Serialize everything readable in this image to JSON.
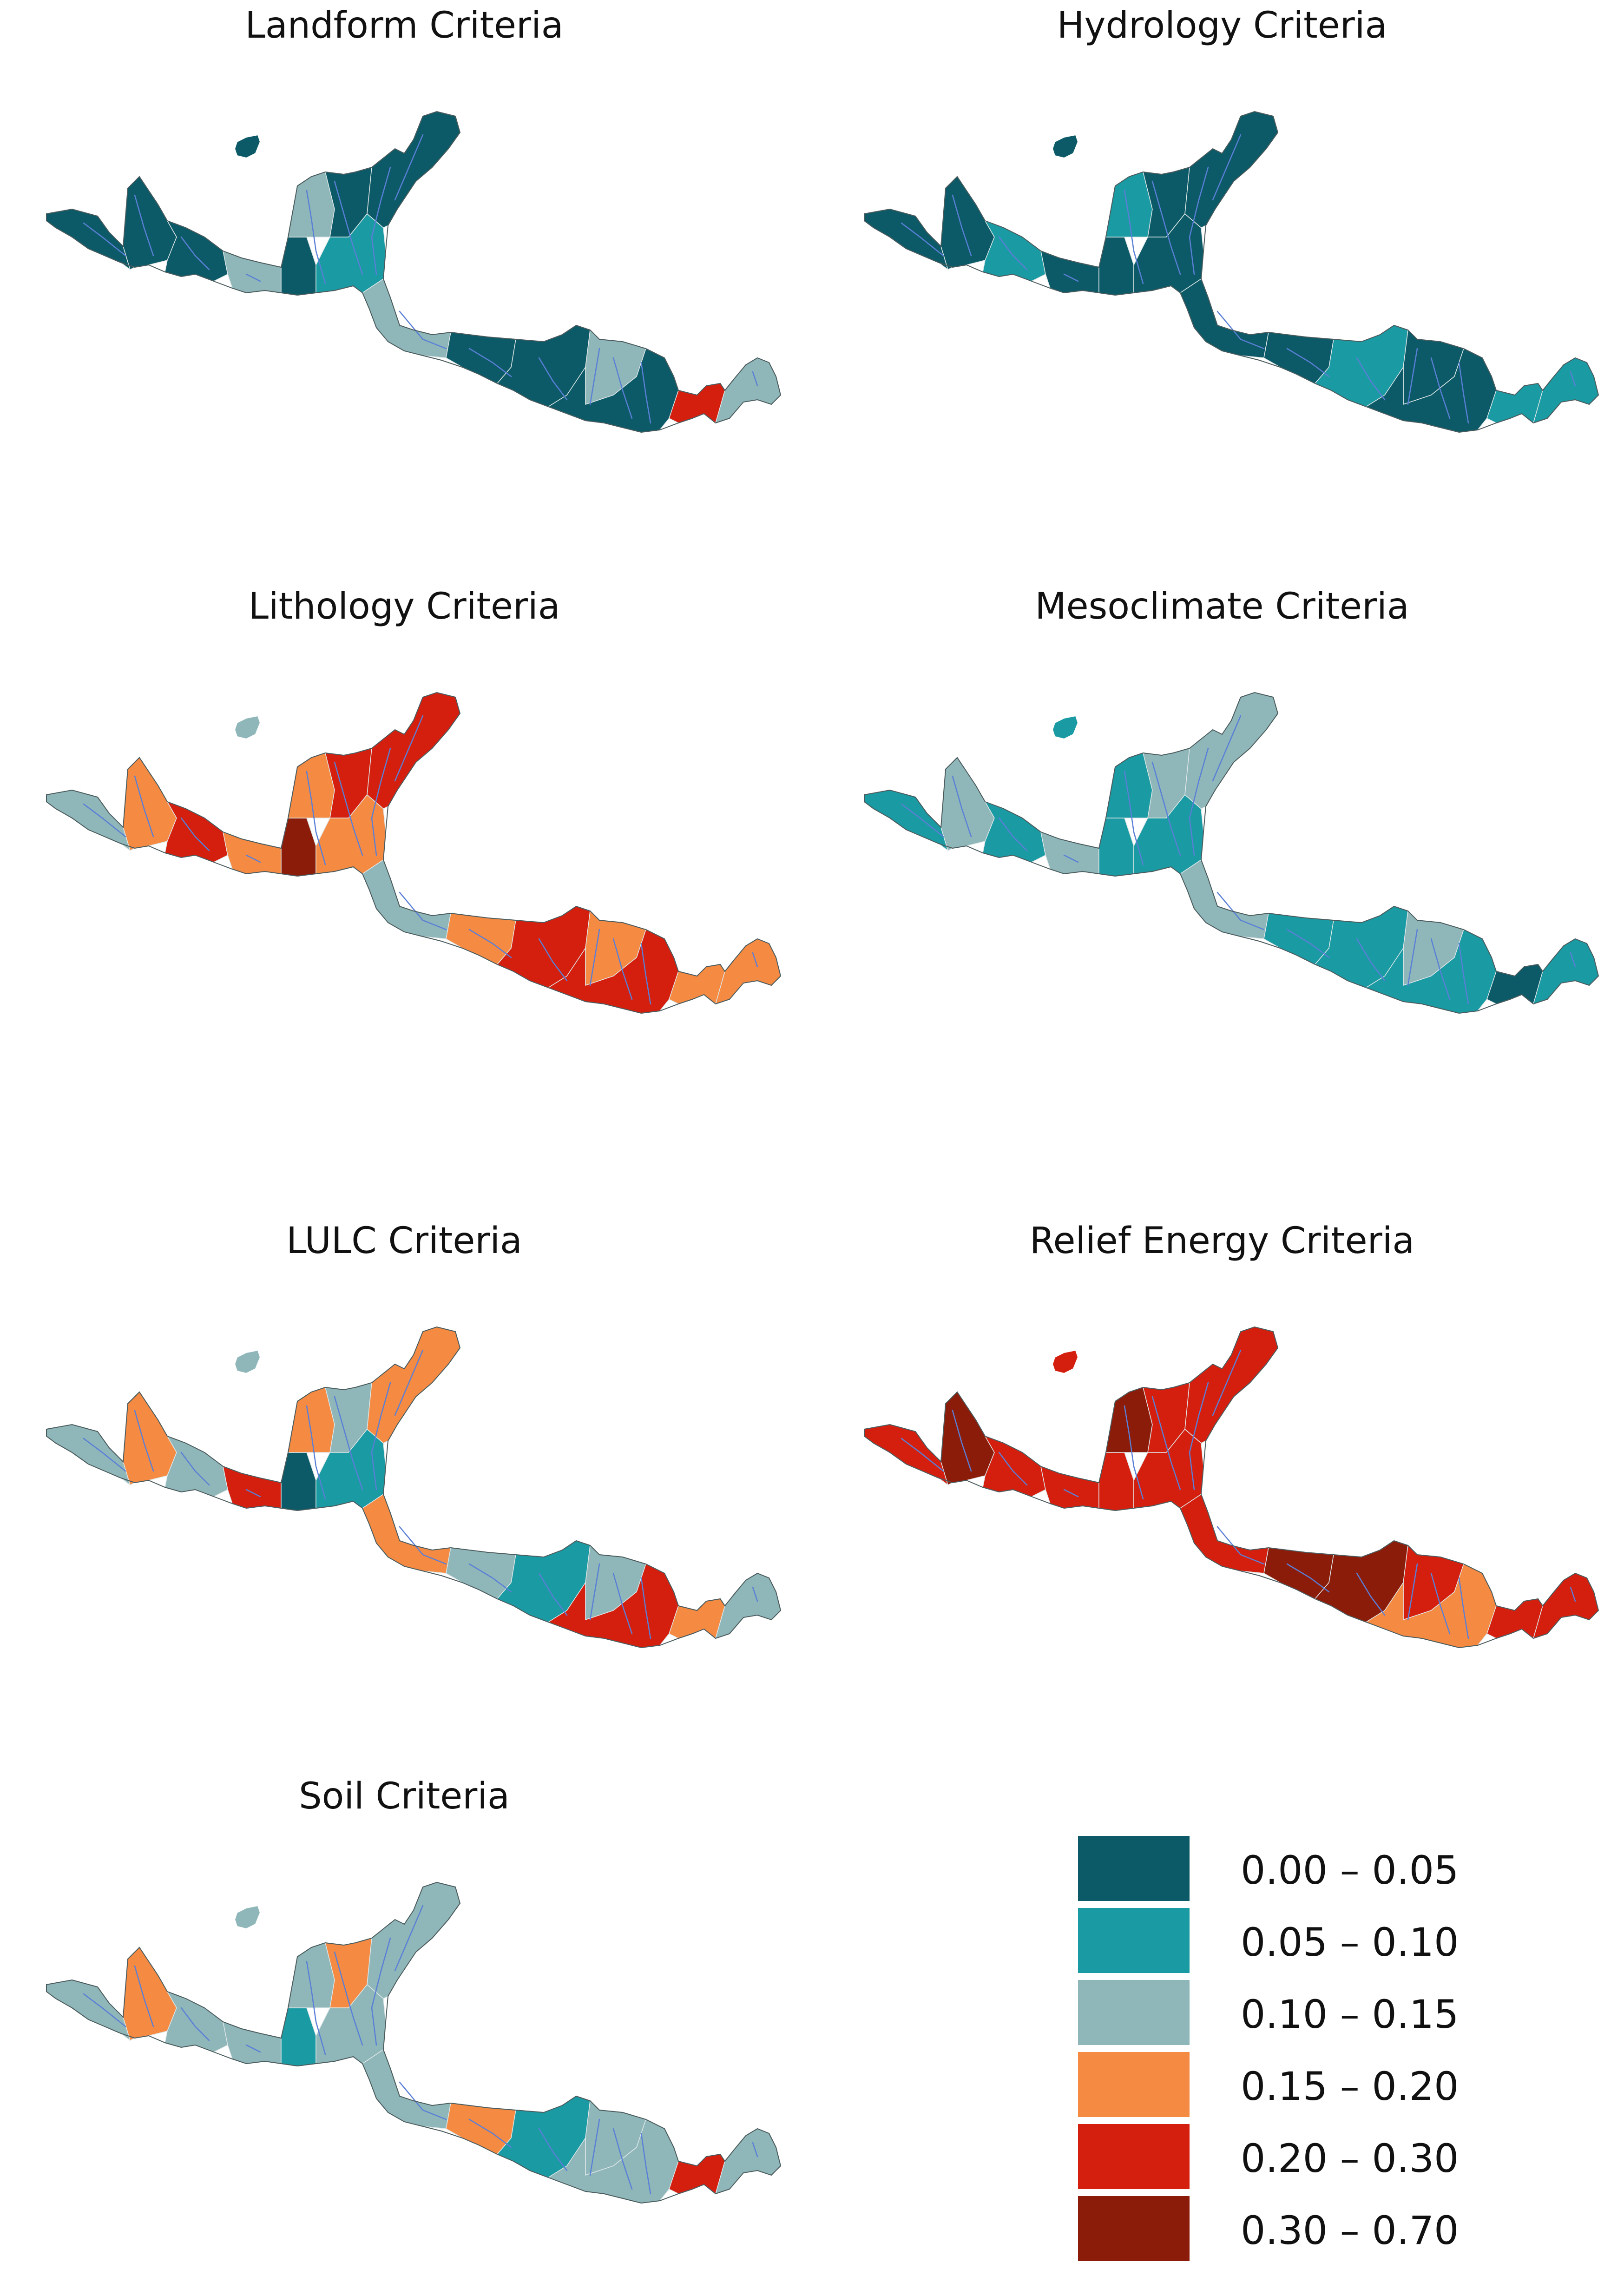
{
  "panels": [
    {
      "title": "Landform Criteria",
      "scheme": [
        "#0c5a67",
        "#0c5a67",
        "#0c5a67",
        "#8fb7b9",
        "#0c5a67",
        "#8fb7b9",
        "#0c5a67",
        "#1a9aa3",
        "#0c5a67",
        "#8fb7b9",
        "#0c5a67",
        "#0c5a67",
        "#8fb7b9",
        "#0c5a67",
        "#d41f0f",
        "#8fb7b9"
      ]
    },
    {
      "title": "Hydrology Criteria",
      "scheme": [
        "#0c5a67",
        "#0c5a67",
        "#1a9aa3",
        "#0c5a67",
        "#0c5a67",
        "#1a9aa3",
        "#0c5a67",
        "#0c5a67",
        "#0c5a67",
        "#0c5a67",
        "#0c5a67",
        "#1a9aa3",
        "#0c5a67",
        "#0c5a67",
        "#1a9aa3",
        "#1a9aa3"
      ]
    },
    {
      "title": "Lithology Criteria",
      "scheme": [
        "#8fb7b9",
        "#f58a42",
        "#d41f0f",
        "#f58a42",
        "#8c1c0a",
        "#f58a42",
        "#d41f0f",
        "#f58a42",
        "#d41f0f",
        "#8fb7b9",
        "#f58a42",
        "#d41f0f",
        "#f58a42",
        "#d41f0f",
        "#f58a42",
        "#f58a42"
      ]
    },
    {
      "title": "Mesoclimate Criteria",
      "scheme": [
        "#1a9aa3",
        "#8fb7b9",
        "#1a9aa3",
        "#8fb7b9",
        "#1a9aa3",
        "#1a9aa3",
        "#8fb7b9",
        "#1a9aa3",
        "#8fb7b9",
        "#8fb7b9",
        "#1a9aa3",
        "#1a9aa3",
        "#8fb7b9",
        "#1a9aa3",
        "#0c5a67",
        "#1a9aa3"
      ]
    },
    {
      "title": "LULC Criteria",
      "scheme": [
        "#8fb7b9",
        "#f58a42",
        "#8fb7b9",
        "#d41f0f",
        "#0c5a67",
        "#f58a42",
        "#8fb7b9",
        "#1a9aa3",
        "#f58a42",
        "#f58a42",
        "#8fb7b9",
        "#1a9aa3",
        "#8fb7b9",
        "#d41f0f",
        "#f58a42",
        "#8fb7b9"
      ]
    },
    {
      "title": "Relief Energy Criteria",
      "scheme": [
        "#d41f0f",
        "#8c1c0a",
        "#d41f0f",
        "#d41f0f",
        "#d41f0f",
        "#8c1c0a",
        "#d41f0f",
        "#d41f0f",
        "#d41f0f",
        "#d41f0f",
        "#8c1c0a",
        "#8c1c0a",
        "#d41f0f",
        "#f58a42",
        "#d41f0f",
        "#d41f0f"
      ]
    },
    {
      "title": "Soil Criteria",
      "scheme": [
        "#8fb7b9",
        "#f58a42",
        "#8fb7b9",
        "#8fb7b9",
        "#1a9aa3",
        "#8fb7b9",
        "#f58a42",
        "#8fb7b9",
        "#8fb7b9",
        "#8fb7b9",
        "#f58a42",
        "#1a9aa3",
        "#8fb7b9",
        "#8fb7b9",
        "#d41f0f",
        "#8fb7b9"
      ]
    }
  ],
  "legend": [
    {
      "label": "0.00 – 0.05",
      "color": "#0c5a67"
    },
    {
      "label": "0.05 – 0.10",
      "color": "#1a9aa3"
    },
    {
      "label": "0.10 – 0.15",
      "color": "#8fb7b9"
    },
    {
      "label": "0.15 – 0.20",
      "color": "#f58a42"
    },
    {
      "label": "0.20 – 0.30",
      "color": "#d41f0f"
    },
    {
      "label": "0.30 – 0.70",
      "color": "#8c1c0a"
    }
  ],
  "stream_color": "#5a7fd6"
}
